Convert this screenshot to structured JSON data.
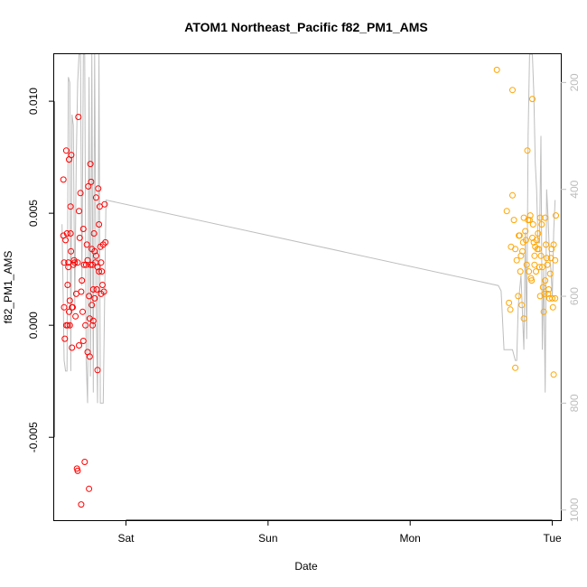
{
  "chart_data": {
    "type": "scatter",
    "title": "ATOM1 Northeast_Pacific f82_PM1_AMS",
    "xlabel": "Date",
    "ylabel": "f82_PM1_AMS",
    "x_ticks": [
      "Sat",
      "Sun",
      "Mon",
      "Tue"
    ],
    "x_tick_values": [
      1,
      2,
      3,
      4
    ],
    "xlim": [
      0.495,
      4.06
    ],
    "ylim": [
      -0.0087,
      0.0121
    ],
    "y_ticks": [
      -0.005,
      0.0,
      0.005,
      0.01
    ],
    "y_tick_labels": [
      "-0.005",
      "0.000",
      "0.005",
      "0.010"
    ],
    "y2_ticks": [
      200,
      400,
      600,
      800,
      1000
    ],
    "y2lim": [
      1019,
      147
    ],
    "grid": false,
    "legend": "none",
    "colors": {
      "series1": "#ff0000",
      "series2": "#ffa500",
      "line": "#bebebe",
      "right_axis": "#bdbdbd"
    },
    "series": [
      {
        "values": [
          [
            0.56,
            0.0065
          ],
          [
            0.56,
            0.004
          ],
          [
            0.565,
            0.0028
          ],
          [
            0.565,
            0.0008
          ],
          [
            0.57,
            -0.0006
          ],
          [
            0.575,
            0.0038
          ],
          [
            0.58,
            0.0078
          ],
          [
            0.58,
            0.0
          ],
          [
            0.585,
            0.0041
          ],
          [
            0.59,
            0.0018
          ],
          [
            0.59,
            0.0
          ],
          [
            0.595,
            0.0028
          ],
          [
            0.595,
            0.0026
          ],
          [
            0.6,
            0.0074
          ],
          [
            0.6,
            0.0006
          ],
          [
            0.605,
            0.0011
          ],
          [
            0.605,
            0.0
          ],
          [
            0.61,
            0.0041
          ],
          [
            0.61,
            0.0053
          ],
          [
            0.613,
            0.0033
          ],
          [
            0.615,
            0.0076
          ],
          [
            0.62,
            0.0008
          ],
          [
            0.62,
            -0.001
          ],
          [
            0.625,
            0.0008
          ],
          [
            0.63,
            0.0027
          ],
          [
            0.635,
            0.0029
          ],
          [
            0.64,
            0.0028
          ],
          [
            0.645,
            0.0004
          ],
          [
            0.65,
            0.0014
          ],
          [
            0.655,
            -0.0064
          ],
          [
            0.66,
            0.0028
          ],
          [
            0.665,
            0.0093
          ],
          [
            0.66,
            -0.0065
          ],
          [
            0.67,
            0.0051
          ],
          [
            0.67,
            -0.0009
          ],
          [
            0.675,
            0.0039
          ],
          [
            0.68,
            0.0059
          ],
          [
            0.685,
            0.0015
          ],
          [
            0.685,
            -0.008
          ],
          [
            0.69,
            0.002
          ],
          [
            0.695,
            0.0006
          ],
          [
            0.7,
            0.0043
          ],
          [
            0.7,
            -0.0007
          ],
          [
            0.705,
            0.0027
          ],
          [
            0.71,
            -0.0061
          ],
          [
            0.715,
            0.0
          ],
          [
            0.72,
            0.0027
          ],
          [
            0.725,
            0.0036
          ],
          [
            0.73,
            0.0029
          ],
          [
            0.73,
            -0.0012
          ],
          [
            0.735,
            0.0062
          ],
          [
            0.74,
            0.0013
          ],
          [
            0.74,
            -0.0073
          ],
          [
            0.745,
            0.0003
          ],
          [
            0.745,
            -0.0014
          ],
          [
            0.75,
            0.0072
          ],
          [
            0.75,
            0.0027
          ],
          [
            0.755,
            0.0064
          ],
          [
            0.76,
            0.0034
          ],
          [
            0.76,
            0.0009
          ],
          [
            0.765,
            0.0027
          ],
          [
            0.765,
            0.0
          ],
          [
            0.77,
            0.0016
          ],
          [
            0.77,
            0.0002
          ],
          [
            0.775,
            0.0041
          ],
          [
            0.78,
            0.0012
          ],
          [
            0.78,
            0.0033
          ],
          [
            0.785,
            0.0028
          ],
          [
            0.79,
            0.0057
          ],
          [
            0.79,
            0.0031
          ],
          [
            0.795,
            0.0016
          ],
          [
            0.8,
            0.0026
          ],
          [
            0.8,
            -0.002
          ],
          [
            0.805,
            0.0061
          ],
          [
            0.81,
            0.0024
          ],
          [
            0.81,
            0.0045
          ],
          [
            0.815,
            0.0053
          ],
          [
            0.82,
            0.0035
          ],
          [
            0.825,
            0.0014
          ],
          [
            0.825,
            0.0028
          ],
          [
            0.83,
            0.0024
          ],
          [
            0.835,
            0.0018
          ],
          [
            0.84,
            0.0036
          ],
          [
            0.845,
            0.0015
          ],
          [
            0.85,
            0.0054
          ],
          [
            0.855,
            0.0037
          ]
        ]
      },
      {
        "values": [
          [
            3.61,
            0.0114
          ],
          [
            3.68,
            0.0051
          ],
          [
            3.695,
            0.001
          ],
          [
            3.705,
            0.0007
          ],
          [
            3.71,
            0.0035
          ],
          [
            3.72,
            0.0105
          ],
          [
            3.72,
            0.0058
          ],
          [
            3.73,
            0.0047
          ],
          [
            3.74,
            0.0034
          ],
          [
            3.74,
            -0.0019
          ],
          [
            3.75,
            0.0029
          ],
          [
            3.76,
            0.0013
          ],
          [
            3.765,
            0.004
          ],
          [
            3.77,
            0.004
          ],
          [
            3.775,
            0.0024
          ],
          [
            3.78,
            0.0031
          ],
          [
            3.785,
            0.0009
          ],
          [
            3.79,
            0.0033
          ],
          [
            3.795,
            0.0037
          ],
          [
            3.8,
            0.0048
          ],
          [
            3.8,
            0.0003
          ],
          [
            3.81,
            0.0042
          ],
          [
            3.815,
            0.0038
          ],
          [
            3.82,
            0.0027
          ],
          [
            3.825,
            0.0078
          ],
          [
            3.83,
            0.0047
          ],
          [
            3.835,
            0.0024
          ],
          [
            3.84,
            0.0047
          ],
          [
            3.845,
            0.0049
          ],
          [
            3.85,
            0.0021
          ],
          [
            3.855,
            0.002
          ],
          [
            3.86,
            0.0101
          ],
          [
            3.86,
            0.0039
          ],
          [
            3.865,
            0.0045
          ],
          [
            3.87,
            0.0037
          ],
          [
            3.875,
            0.0031
          ],
          [
            3.875,
            0.0027
          ],
          [
            3.88,
            0.0035
          ],
          [
            3.885,
            0.0024
          ],
          [
            3.89,
            0.0038
          ],
          [
            3.895,
            0.0034
          ],
          [
            3.9,
            0.0041
          ],
          [
            3.905,
            0.0034
          ],
          [
            3.91,
            0.0026
          ],
          [
            3.915,
            0.0048
          ],
          [
            3.915,
            0.0013
          ],
          [
            3.92,
            0.0031
          ],
          [
            3.925,
            0.0045
          ],
          [
            3.93,
            0.0026
          ],
          [
            3.935,
            0.0017
          ],
          [
            3.94,
            0.0006
          ],
          [
            3.945,
            0.0014
          ],
          [
            3.95,
            0.002
          ],
          [
            3.95,
            0.0048
          ],
          [
            3.955,
            0.0036
          ],
          [
            3.96,
            0.003
          ],
          [
            3.965,
            0.0027
          ],
          [
            3.97,
            0.0014
          ],
          [
            3.975,
            0.0016
          ],
          [
            3.98,
            0.0012
          ],
          [
            3.985,
            0.0023
          ],
          [
            3.99,
            0.003
          ],
          [
            3.995,
            0.0034
          ],
          [
            4.0,
            0.0012
          ],
          [
            4.005,
            0.0008
          ],
          [
            4.01,
            0.0036
          ],
          [
            4.01,
            -0.0022
          ],
          [
            4.02,
            0.0029
          ],
          [
            4.025,
            0.0049
          ],
          [
            4.02,
            0.0012
          ]
        ]
      }
    ],
    "line_series": {
      "axis": "right",
      "x": [
        0.55,
        0.555,
        0.565,
        0.575,
        0.585,
        0.595,
        0.605,
        0.612,
        0.62,
        0.63,
        0.64,
        0.65,
        0.66,
        0.67,
        0.68,
        0.69,
        0.7,
        0.71,
        0.72,
        0.73,
        0.74,
        0.75,
        0.76,
        0.77,
        0.78,
        0.79,
        0.8,
        0.81,
        0.82,
        0.83,
        0.84,
        0.85,
        0.86,
        3.62,
        3.64,
        3.66,
        3.68,
        3.7,
        3.72,
        3.74,
        3.75,
        3.76,
        3.78,
        3.8,
        3.81,
        3.82,
        3.83,
        3.84,
        3.85,
        3.86,
        3.87,
        3.88,
        3.89,
        3.9,
        3.91,
        3.92,
        3.93,
        3.94,
        3.95,
        3.96,
        3.97,
        3.98,
        3.99,
        4.0,
        4.01,
        4.02
      ],
      "y": [
        465,
        540,
        720,
        740,
        740,
        190,
        200,
        740,
        260,
        280,
        620,
        350,
        200,
        147,
        147,
        580,
        147,
        147,
        720,
        800,
        190,
        750,
        147,
        780,
        147,
        600,
        800,
        147,
        800,
        800,
        800,
        600,
        420,
        580,
        590,
        700,
        700,
        700,
        700,
        720,
        720,
        620,
        560,
        700,
        480,
        680,
        300,
        147,
        147,
        147,
        220,
        350,
        400,
        500,
        500,
        300,
        700,
        550,
        780,
        400,
        450,
        520,
        550,
        600,
        480,
        420
      ]
    }
  }
}
